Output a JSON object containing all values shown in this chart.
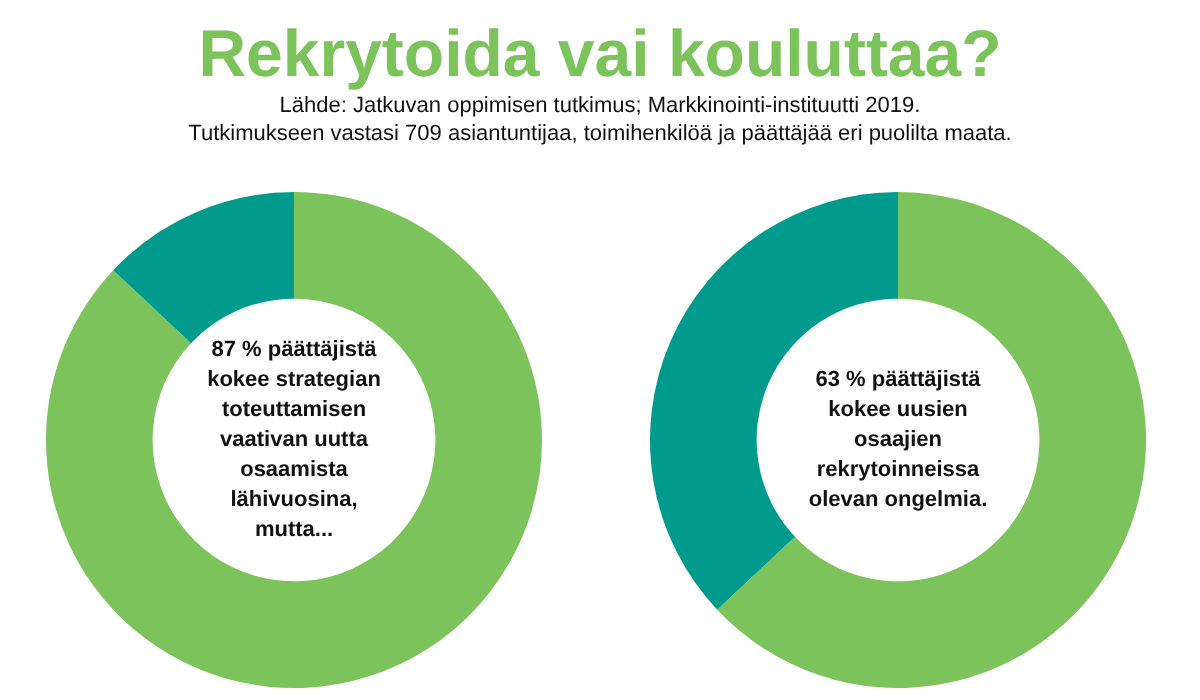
{
  "chart_data": [
    {
      "type": "donut",
      "title": "Rekrytoida vai kouluttaa?",
      "annotations": [
        "Lähde: Jatkuvan oppimisen tutkimus; Markkinointi-instituutti 2019.",
        "Tutkimukseen vastasi 709 asiantuntijaa, toimihenkilöä ja päättäjää eri puolilta maata.",
        "87 % päättäjistä kokee strategian toteuttamisen vaativan uutta osaamista lähivuosina, mutta..."
      ],
      "categories": [
        null,
        null
      ],
      "values": [
        87,
        13
      ],
      "colors": [
        "#7dc35b",
        "#009b8d"
      ],
      "legend": false
    },
    {
      "type": "donut",
      "annotations": [
        "63 % päättäjistä kokee uusien osaajien rekrytoinneissa olevan ongelmia."
      ],
      "categories": [
        null,
        null
      ],
      "values": [
        63,
        37
      ],
      "colors": [
        "#7dc35b",
        "#009b8d"
      ],
      "legend": false
    }
  ]
}
